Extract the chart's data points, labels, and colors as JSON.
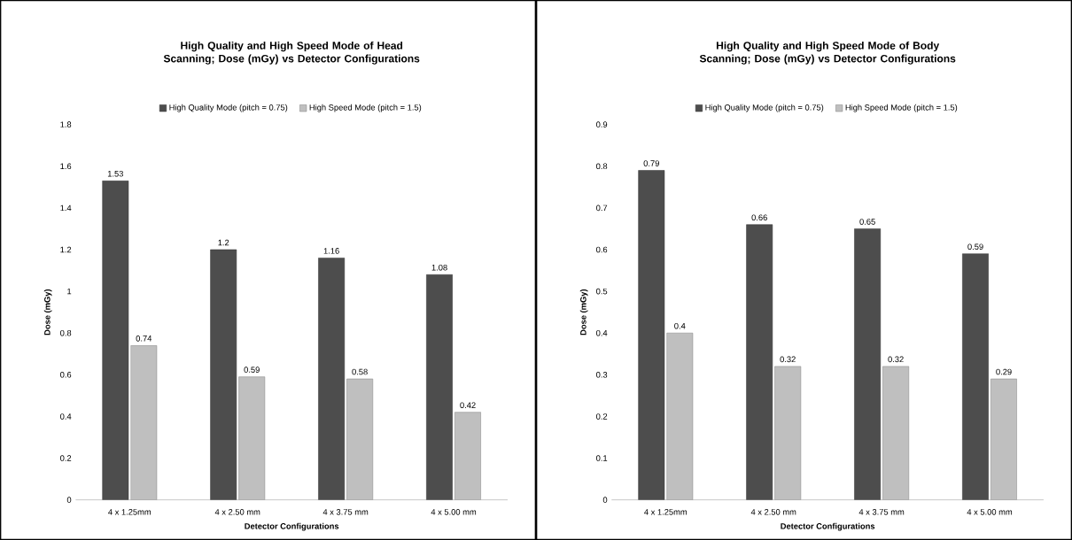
{
  "chart_data": [
    {
      "type": "bar",
      "title": "High Quality and High Speed Mode of Head Scanning; Dose (mGy) vs Detector Configurations",
      "xlabel": "Detector Configurations",
      "ylabel": "Dose (mGy)",
      "categories": [
        "4 x 1.25mm",
        "4 x 2.50 mm",
        "4 x 3.75 mm",
        "4 x 5.00 mm"
      ],
      "series": [
        {
          "name": "High Quality Mode (pitch = 0.75)",
          "color": "#4d4d4d",
          "values": [
            1.53,
            1.2,
            1.16,
            1.08
          ]
        },
        {
          "name": "High Speed Mode (pitch = 1.5)",
          "color": "#bfbfbf",
          "values": [
            0.74,
            0.59,
            0.58,
            0.42
          ]
        }
      ],
      "ylim": [
        0,
        1.8
      ],
      "yticks": [
        0,
        0.2,
        0.4,
        0.6,
        0.8,
        1,
        1.2,
        1.4,
        1.6,
        1.8
      ],
      "legend": "top",
      "data_labels": true
    },
    {
      "type": "bar",
      "title": "High Quality and High Speed Mode of Body Scanning; Dose (mGy) vs Detector Configurations",
      "xlabel": "Detector Configurations",
      "ylabel": "Dose (mGy)",
      "categories": [
        "4 x 1.25mm",
        "4 x 2.50 mm",
        "4 x 3.75 mm",
        "4 x 5.00 mm"
      ],
      "series": [
        {
          "name": "High Quality Mode (pitch = 0.75)",
          "color": "#4d4d4d",
          "values": [
            0.79,
            0.66,
            0.65,
            0.59
          ]
        },
        {
          "name": "High Speed Mode (pitch = 1.5)",
          "color": "#bfbfbf",
          "values": [
            0.4,
            0.32,
            0.32,
            0.29
          ]
        }
      ],
      "ylim": [
        0,
        0.9
      ],
      "yticks": [
        0,
        0.1,
        0.2,
        0.3,
        0.4,
        0.5,
        0.6,
        0.7,
        0.8,
        0.9
      ],
      "legend": "top",
      "data_labels": true
    }
  ]
}
